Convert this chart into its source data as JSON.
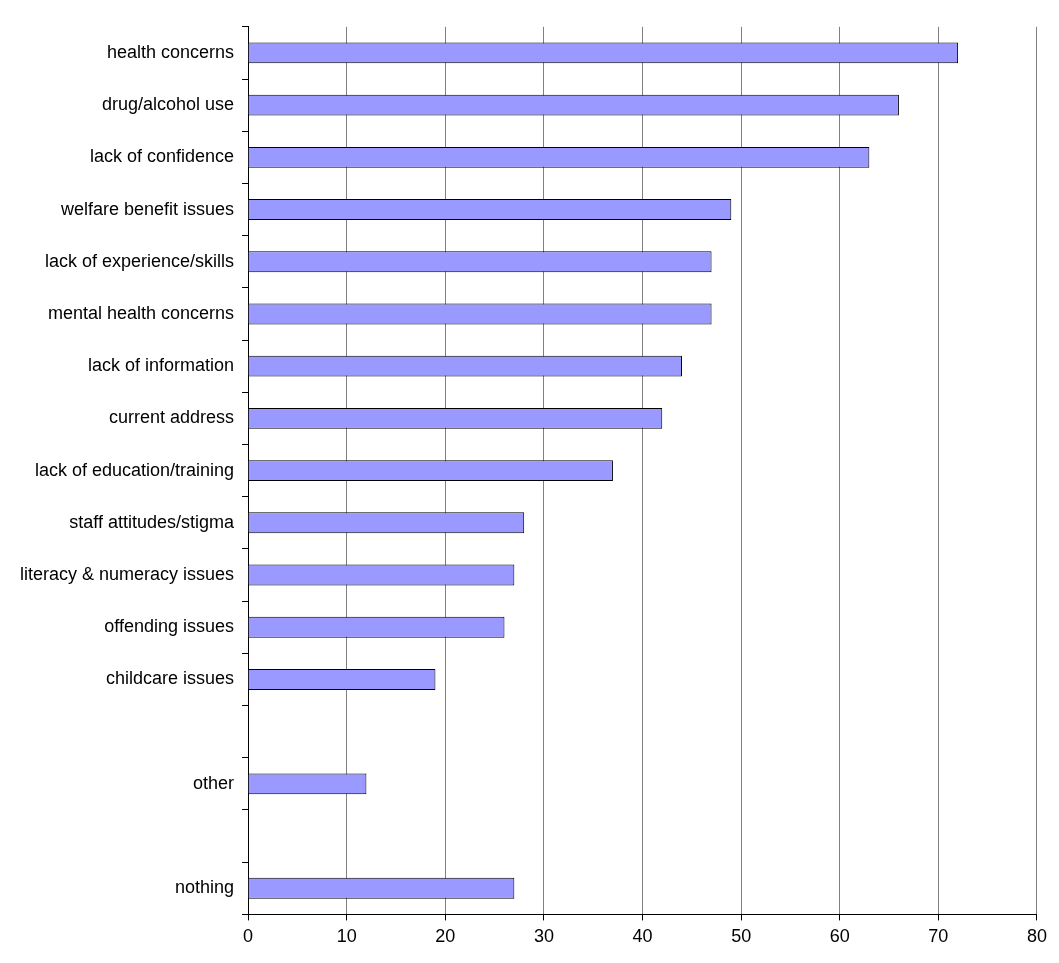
{
  "chart_data": {
    "type": "bar",
    "orientation": "horizontal",
    "categories": [
      "health concerns",
      "drug/alcohol use",
      "lack of confidence",
      "welfare benefit issues",
      "lack of experience/skills",
      "mental health concerns",
      "lack of information",
      "current address",
      "lack of education/training",
      "staff attitudes/stigma",
      "literacy & numeracy issues",
      "offending issues",
      "childcare issues",
      null,
      "other",
      null,
      "nothing"
    ],
    "values": [
      72,
      66,
      63,
      49,
      47,
      47,
      44,
      42,
      37,
      28,
      27,
      26,
      19,
      null,
      12,
      null,
      27
    ],
    "color": "#9999ff",
    "xlim": [
      0,
      80
    ],
    "xticks": [
      0,
      10,
      20,
      30,
      40,
      50,
      60,
      70,
      80
    ],
    "grid": "x"
  }
}
